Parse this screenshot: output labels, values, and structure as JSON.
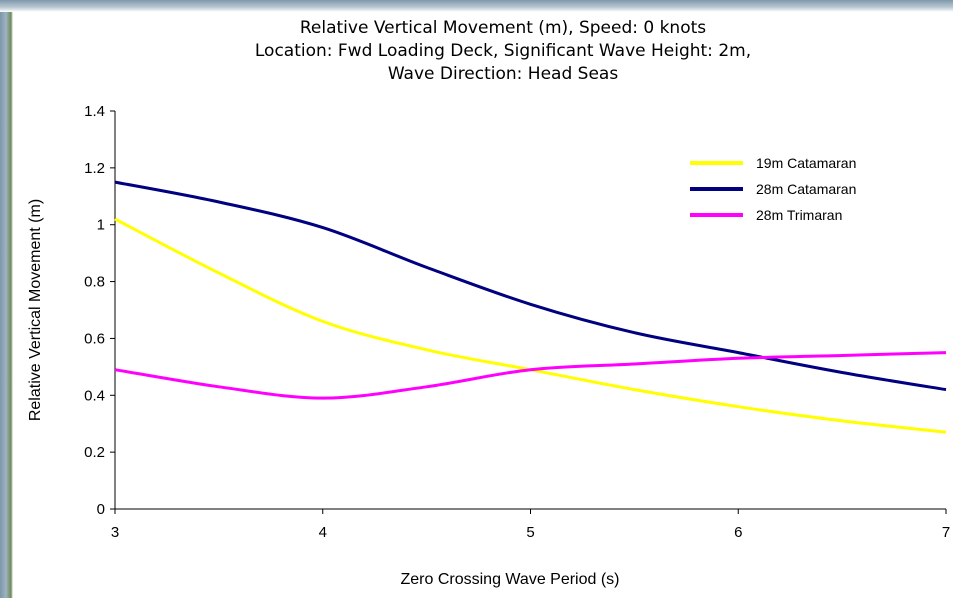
{
  "chart_data": {
    "type": "line",
    "title_lines": [
      "Relative Vertical Movement (m), Speed: 0 knots",
      "Location: Fwd Loading Deck, Significant Wave Height: 2m,",
      "Wave Direction: Head Seas"
    ],
    "xlabel": "Zero Crossing Wave Period (s)",
    "ylabel": "Relative Vertical Movement (m)",
    "xlim": [
      3,
      7
    ],
    "ylim": [
      0,
      1.4
    ],
    "x_ticks": [
      "3",
      "4",
      "5",
      "6",
      "7"
    ],
    "y_ticks": [
      "0",
      "0.2",
      "0.4",
      "0.6",
      "0.8",
      "1",
      "1.2",
      "1.4"
    ],
    "grid": false,
    "legend_position": "top-right",
    "series": [
      {
        "name": "19m Catamaran",
        "color": "#ffff00",
        "x": [
          3,
          3.5,
          4,
          4.5,
          5,
          5.5,
          6,
          6.5,
          7
        ],
        "y": [
          1.02,
          0.83,
          0.66,
          0.56,
          0.49,
          0.42,
          0.36,
          0.31,
          0.27
        ]
      },
      {
        "name": "28m Catamaran",
        "color": "#000080",
        "x": [
          3,
          3.5,
          4,
          4.5,
          5,
          5.5,
          6,
          6.5,
          7
        ],
        "y": [
          1.15,
          1.08,
          0.99,
          0.85,
          0.72,
          0.62,
          0.55,
          0.48,
          0.42
        ]
      },
      {
        "name": "28m Trimaran",
        "color": "#ff00ff",
        "x": [
          3,
          3.5,
          4,
          4.5,
          5,
          5.5,
          6,
          6.5,
          7
        ],
        "y": [
          0.49,
          0.43,
          0.39,
          0.43,
          0.49,
          0.51,
          0.53,
          0.54,
          0.55
        ]
      }
    ]
  }
}
